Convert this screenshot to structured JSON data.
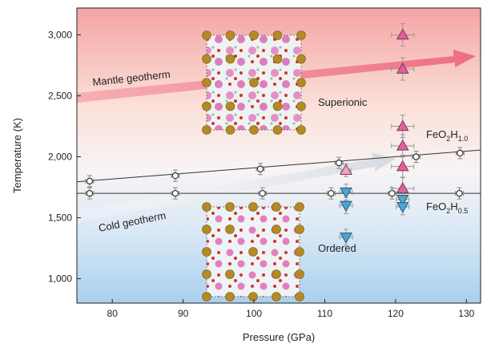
{
  "chart_data": {
    "type": "scatter",
    "xlabel": "Pressure (GPa)",
    "ylabel": "Temperature (K)",
    "xlim": [
      75,
      132
    ],
    "ylim": [
      800,
      3220
    ],
    "x_ticks": [
      80,
      90,
      100,
      110,
      120,
      130
    ],
    "y_ticks": [
      1000,
      1500,
      2000,
      2500,
      3000
    ],
    "y_tick_labels": [
      "1,000",
      "1,500",
      "2,000",
      "2,500",
      "3,000"
    ],
    "grid": false,
    "background": "vertical gradient from red (high temperature) to blue (low temperature)",
    "colors": {
      "up_triangle": "#e0609a",
      "up_triangle_light": "#f2a3c0",
      "down_triangle": "#4aa5d6",
      "circle": "#ffffff",
      "line": "#333333",
      "gradient_top": "#f4a4a4",
      "gradient_bottom": "#a9d0ee",
      "geotherm_mantle": "#ef7f8f",
      "geotherm_cold": "#d9dce3"
    },
    "series": [
      {
        "name": "FeO2H1.0",
        "marker": "circle",
        "points": [
          [
            76.8,
            1800
          ],
          [
            88.9,
            1845
          ],
          [
            100.9,
            1900
          ],
          [
            112.0,
            1950
          ],
          [
            122.9,
            2000
          ],
          [
            129.1,
            2030
          ]
        ],
        "fit_line": [
          [
            75,
            1795
          ],
          [
            132,
            2055
          ]
        ]
      },
      {
        "name": "FeO2H0.5",
        "marker": "circle",
        "points": [
          [
            76.8,
            1700
          ],
          [
            88.9,
            1700
          ],
          [
            101.2,
            1700
          ],
          [
            110.9,
            1700
          ],
          [
            119.5,
            1700
          ],
          [
            129.0,
            1700
          ]
        ],
        "fit_line": [
          [
            75,
            1700
          ],
          [
            132,
            1700
          ]
        ]
      },
      {
        "name": "superionic",
        "marker": "triangle-up",
        "points": [
          [
            121.0,
            3000
          ],
          [
            121.0,
            2720
          ],
          [
            121.0,
            2250
          ],
          [
            121.0,
            2090
          ],
          [
            121.0,
            1920
          ],
          [
            121.0,
            1740
          ],
          [
            113.0,
            1890
          ]
        ]
      },
      {
        "name": "ordered",
        "marker": "triangle-down",
        "points": [
          [
            113.0,
            1710
          ],
          [
            113.0,
            1600
          ],
          [
            113.0,
            1340
          ],
          [
            121.0,
            1650
          ],
          [
            121.0,
            1590
          ]
        ]
      }
    ],
    "annotations": {
      "mantle_geotherm": "Mantle geotherm",
      "cold_geotherm": "Cold geotherm",
      "superionic": "Superionic",
      "ordered": "Ordered",
      "feo2h10": {
        "base": "FeO",
        "s1": "2",
        "mid": "H",
        "s2": "1.0"
      },
      "feo2h05": {
        "base": "FeO",
        "s1": "2",
        "mid": "H",
        "s2": "0.5"
      }
    }
  }
}
